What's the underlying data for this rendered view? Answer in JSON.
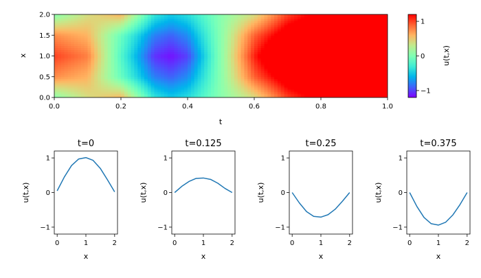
{
  "chart_data": [
    {
      "type": "heatmap",
      "xlabel": "t",
      "ylabel": "x",
      "xlim": [
        0,
        1
      ],
      "ylim": [
        0,
        2
      ],
      "xticks": [
        "0.0",
        "0.2",
        "0.4",
        "0.6",
        "0.8",
        "1.0"
      ],
      "yticks": [
        "0.0",
        "0.5",
        "1.0",
        "1.5",
        "2.0"
      ],
      "colorscale": "rainbow",
      "vmin": -1.2,
      "vmax": 1.2,
      "colorbar_label": "u(t,x)",
      "colorbar_ticks": [
        "−1",
        "0",
        "1"
      ],
      "t": [
        0.0,
        0.1,
        0.2,
        0.3,
        0.35,
        0.4,
        0.5,
        0.6,
        0.7,
        0.8,
        0.9,
        1.0
      ],
      "x": [
        0.0,
        0.5,
        1.0,
        1.5,
        2.0
      ],
      "u": [
        [
          0.05,
          0.4,
          0.6,
          -0.35,
          -0.5,
          -0.4,
          0.05,
          0.4,
          1.0,
          1.3,
          1.4,
          1.4
        ],
        [
          0.75,
          0.6,
          -0.1,
          -0.8,
          -0.9,
          -0.75,
          0.05,
          0.9,
          1.4,
          1.6,
          1.7,
          1.7
        ],
        [
          1.0,
          0.8,
          -0.2,
          -1.05,
          -1.15,
          -1.0,
          0.05,
          1.1,
          1.8,
          2.0,
          2.0,
          2.0
        ],
        [
          0.75,
          0.6,
          -0.1,
          -0.8,
          -0.9,
          -0.75,
          0.05,
          0.9,
          1.4,
          1.6,
          1.7,
          1.7
        ],
        [
          0.05,
          0.4,
          0.6,
          -0.35,
          -0.5,
          -0.4,
          0.05,
          0.4,
          1.0,
          1.3,
          1.4,
          1.4
        ]
      ]
    },
    {
      "type": "line",
      "title": "t=0",
      "xlabel": "x",
      "ylabel": "u(t,x)",
      "xlim": [
        -0.1,
        2.1
      ],
      "ylim": [
        -1.2,
        1.2
      ],
      "xticks": [
        "0",
        "1",
        "2"
      ],
      "yticks": [
        "−1",
        "0",
        "1"
      ],
      "color": "#1f77b4",
      "series": [
        {
          "x": [
            0,
            0.25,
            0.5,
            0.75,
            1.0,
            1.25,
            1.5,
            1.75,
            2.0
          ],
          "values": [
            0.05,
            0.45,
            0.78,
            0.97,
            1.01,
            0.93,
            0.7,
            0.37,
            0.02
          ]
        }
      ]
    },
    {
      "type": "line",
      "title": "t=0.125",
      "xlabel": "x",
      "ylabel": "u(t,x)",
      "xlim": [
        -0.1,
        2.1
      ],
      "ylim": [
        -1.2,
        1.2
      ],
      "xticks": [
        "0",
        "1",
        "2"
      ],
      "yticks": [
        "−1",
        "0",
        "1"
      ],
      "color": "#1f77b4",
      "series": [
        {
          "x": [
            0,
            0.25,
            0.5,
            0.75,
            1.0,
            1.25,
            1.5,
            1.75,
            2.0
          ],
          "values": [
            0.0,
            0.18,
            0.32,
            0.41,
            0.42,
            0.38,
            0.27,
            0.12,
            0.0
          ]
        }
      ]
    },
    {
      "type": "line",
      "title": "t=0.25",
      "xlabel": "x",
      "ylabel": "u(t,x)",
      "xlim": [
        -0.1,
        2.1
      ],
      "ylim": [
        -1.2,
        1.2
      ],
      "xticks": [
        "0",
        "1",
        "2"
      ],
      "yticks": [
        "−1",
        "0",
        "1"
      ],
      "color": "#1f77b4",
      "series": [
        {
          "x": [
            0,
            0.25,
            0.5,
            0.75,
            1.0,
            1.25,
            1.5,
            1.75,
            2.0
          ],
          "values": [
            0.0,
            -0.3,
            -0.55,
            -0.69,
            -0.71,
            -0.64,
            -0.48,
            -0.25,
            0.0
          ]
        }
      ]
    },
    {
      "type": "line",
      "title": "t=0.375",
      "xlabel": "x",
      "ylabel": "u(t,x)",
      "xlim": [
        -0.1,
        2.1
      ],
      "ylim": [
        -1.2,
        1.2
      ],
      "xticks": [
        "0",
        "1",
        "2"
      ],
      "yticks": [
        "−1",
        "0",
        "1"
      ],
      "color": "#1f77b4",
      "series": [
        {
          "x": [
            0,
            0.25,
            0.5,
            0.75,
            1.0,
            1.25,
            1.5,
            1.75,
            2.0
          ],
          "values": [
            0.0,
            -0.4,
            -0.72,
            -0.9,
            -0.94,
            -0.86,
            -0.65,
            -0.35,
            0.0
          ]
        }
      ]
    }
  ]
}
